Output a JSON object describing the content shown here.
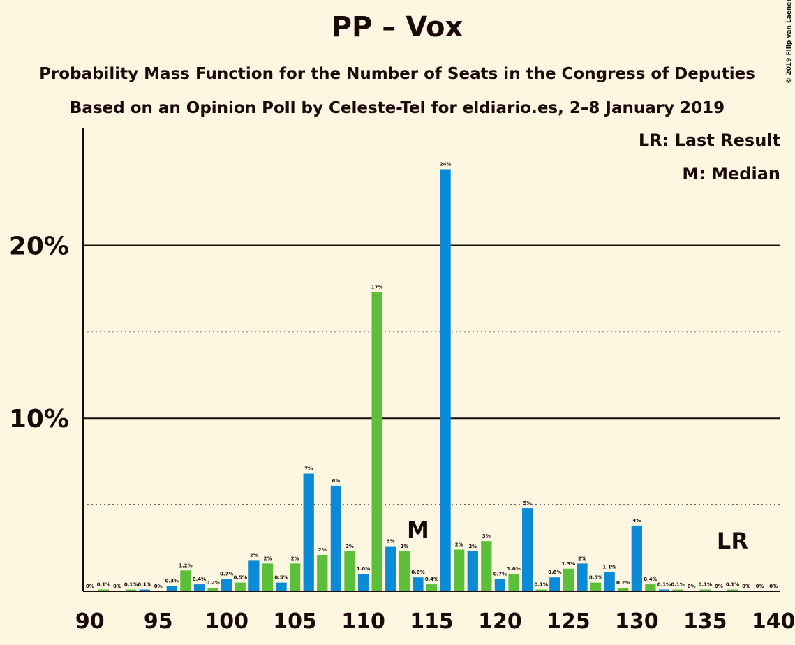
{
  "chart_data": {
    "type": "bar",
    "title": "PP – Vox",
    "subtitle": "Probability Mass Function for the Number of Seats in the Congress of Deputies",
    "subtitle2": "Based on an Opinion Poll by Celeste-Tel for eldiario.es, 2–8 January 2019",
    "credit": "© 2019 Filip van Laenen",
    "legend_notes": [
      "LR: Last Result",
      "M: Median"
    ],
    "annotations": [
      {
        "text": "M",
        "x": 114
      },
      {
        "text": "LR",
        "x": 137
      }
    ],
    "x": [
      90,
      91,
      92,
      93,
      94,
      95,
      96,
      97,
      98,
      99,
      100,
      101,
      102,
      103,
      104,
      105,
      106,
      107,
      108,
      109,
      110,
      111,
      112,
      113,
      114,
      115,
      116,
      117,
      118,
      119,
      120,
      121,
      122,
      123,
      124,
      125,
      126,
      127,
      128,
      129,
      130,
      131,
      132,
      133,
      134,
      135,
      136,
      137,
      138,
      139,
      140
    ],
    "values": [
      0,
      0.1,
      0,
      0.1,
      0.1,
      0,
      0.3,
      1.2,
      0.4,
      0.2,
      0.7,
      0.5,
      1.8,
      1.6,
      0.5,
      1.6,
      6.8,
      2.1,
      6.1,
      2.3,
      1.0,
      17.3,
      2.6,
      2.3,
      0.8,
      0.4,
      24.4,
      2.4,
      2.3,
      2.9,
      0.7,
      1.0,
      4.8,
      0.1,
      0.8,
      1.3,
      1.6,
      0.5,
      1.1,
      0.2,
      3.8,
      0.4,
      0.1,
      0.1,
      0,
      0.1,
      0,
      0.1,
      0,
      0,
      0
    ],
    "value_labels": [
      "0%",
      "0.1%",
      "0%",
      "0.1%",
      "0.1%",
      "0%",
      "0.3%",
      "1.2%",
      "0.4%",
      "0.2%",
      "0.7%",
      "0.5%",
      "2%",
      "2%",
      "0.5%",
      "2%",
      "7%",
      "2%",
      "6%",
      "2%",
      "1.0%",
      "17%",
      "3%",
      "2%",
      "0.8%",
      "0.4%",
      "24%",
      "2%",
      "2%",
      "3%",
      "0.7%",
      "1.0%",
      "5%",
      "0.1%",
      "0.8%",
      "1.3%",
      "2%",
      "0.5%",
      "1.1%",
      "0.2%",
      "4%",
      "0.4%",
      "0.1%",
      "0.1%",
      "0%",
      "0.1%",
      "0%",
      "0.1%",
      "0%",
      "0%",
      "0%"
    ],
    "bar_colors": [
      "#0b8ad6",
      "#5cbf39"
    ],
    "xlim": [
      89.5,
      140.5
    ],
    "xticks": [
      90,
      95,
      100,
      105,
      110,
      115,
      120,
      125,
      130,
      135,
      140
    ],
    "ylim": [
      0,
      26.8
    ],
    "yticks": [
      {
        "value": 10,
        "label": "10%"
      },
      {
        "value": 20,
        "label": "20%"
      }
    ],
    "minor_yticks": [
      5,
      15
    ],
    "grid": true
  }
}
